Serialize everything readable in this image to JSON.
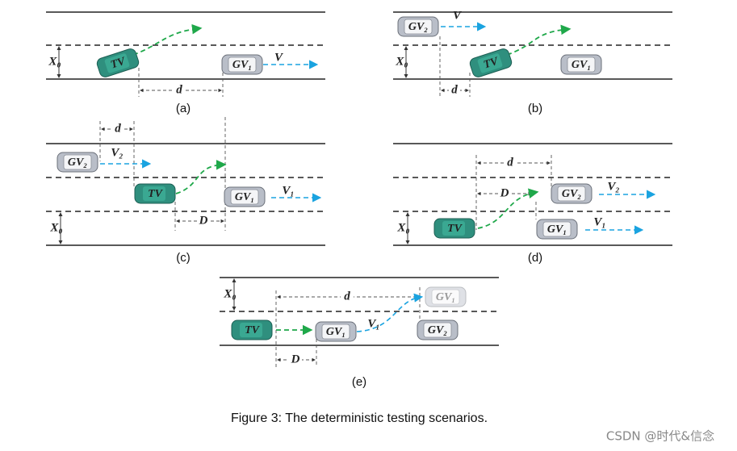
{
  "panels": [
    {
      "label": "(a)",
      "cars": [
        "TV",
        "GV₁"
      ],
      "labels": [
        "X₀",
        "V",
        "d"
      ]
    },
    {
      "label": "(b)",
      "cars": [
        "GV₂",
        "TV",
        "GV₁"
      ],
      "labels": [
        "V",
        "X₀",
        "d"
      ]
    },
    {
      "label": "(c)",
      "cars": [
        "GV₂",
        "TV",
        "GV₁"
      ],
      "labels": [
        "d",
        "V₂",
        "V₁",
        "D",
        "X₀"
      ]
    },
    {
      "label": "(d)",
      "cars": [
        "GV₂",
        "TV",
        "GV₁"
      ],
      "labels": [
        "d",
        "D",
        "V₂",
        "V₁",
        "X₀"
      ]
    },
    {
      "label": "(e)",
      "cars": [
        "TV",
        "GV₁",
        "GV₂",
        "GV₁"
      ],
      "labels": [
        "X₀",
        "d",
        "V₁",
        "D"
      ]
    }
  ],
  "caption": "Figure 3: The deterministic testing scenarios.",
  "watermark": "CSDN @时代&信念"
}
